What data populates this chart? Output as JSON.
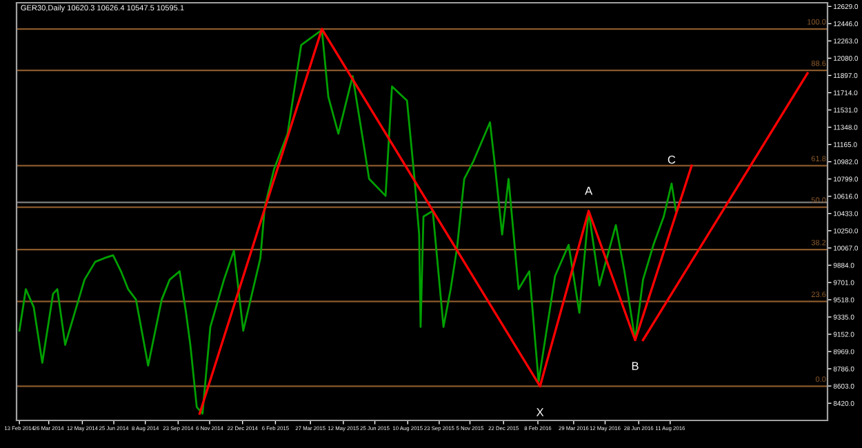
{
  "chart_data": {
    "type": "line",
    "title": "GER30,Daily 10620.3 10626.4 10547.5 10595.1",
    "xticks": [
      {
        "value": "2014-02-13",
        "label": "13 Feb 2014"
      },
      {
        "value": "2014-03-26",
        "label": "26 Mar 2014"
      },
      {
        "value": "2014-05-12",
        "label": "12 May 2014"
      },
      {
        "value": "2014-06-25",
        "label": "25 Jun 2014"
      },
      {
        "value": "2014-08-08",
        "label": "8 Aug 2014"
      },
      {
        "value": "2014-09-23",
        "label": "23 Sep 2014"
      },
      {
        "value": "2014-11-06",
        "label": "6 Nov 2014"
      },
      {
        "value": "2014-12-22",
        "label": "22 Dec 2014"
      },
      {
        "value": "2015-02-06",
        "label": "6 Feb 2015"
      },
      {
        "value": "2015-03-27",
        "label": "27 Mar 2015"
      },
      {
        "value": "2015-05-12",
        "label": "12 May 2015"
      },
      {
        "value": "2015-06-25",
        "label": "25 Jun 2015"
      },
      {
        "value": "2015-08-10",
        "label": "10 Aug 2015"
      },
      {
        "value": "2015-09-23",
        "label": "23 Sep 2015"
      },
      {
        "value": "2015-11-05",
        "label": "5 Nov 2015"
      },
      {
        "value": "2015-12-22",
        "label": "22 Dec 2015"
      },
      {
        "value": "2016-02-08",
        "label": "8 Feb 2016"
      },
      {
        "value": "2016-03-29",
        "label": "29 Mar 2016"
      },
      {
        "value": "2016-05-12",
        "label": "12 May 2016"
      },
      {
        "value": "2016-06-28",
        "label": "28 Jun 2016"
      },
      {
        "value": "2016-08-11",
        "label": "11 Aug 2016"
      }
    ],
    "xlim": [
      "2014-02-09",
      "2017-03-19"
    ],
    "ylim": [
      8238,
      12668
    ],
    "yticks": [
      {
        "value": 8420,
        "label": "8420.0"
      },
      {
        "value": 8603,
        "label": "8603.0"
      },
      {
        "value": 8786,
        "label": "8786.0"
      },
      {
        "value": 8969,
        "label": "8969.0"
      },
      {
        "value": 9152,
        "label": "9152.0"
      },
      {
        "value": 9335,
        "label": "9335.0"
      },
      {
        "value": 9518,
        "label": "9518.0"
      },
      {
        "value": 9701,
        "label": "9701.0"
      },
      {
        "value": 9884,
        "label": "9884.0"
      },
      {
        "value": 10067,
        "label": "10067.0"
      },
      {
        "value": 10250,
        "label": "10250.0"
      },
      {
        "value": 10433,
        "label": "10433.0"
      },
      {
        "value": 10616,
        "label": "10616.0"
      },
      {
        "value": 10799,
        "label": "10799.0"
      },
      {
        "value": 10982,
        "label": "10982.0"
      },
      {
        "value": 11165,
        "label": "11165.0"
      },
      {
        "value": 11348,
        "label": "11348.0"
      },
      {
        "value": 11531,
        "label": "11531.0"
      },
      {
        "value": 11714,
        "label": "11714.0"
      },
      {
        "value": 11897,
        "label": "11897.0"
      },
      {
        "value": 12080,
        "label": "12080.0"
      },
      {
        "value": 12263,
        "label": "12263.0"
      },
      {
        "value": 12446,
        "label": "12446.0"
      },
      {
        "value": 12629,
        "label": "12629.0"
      }
    ],
    "series": [
      {
        "color": "#00a000",
        "x": [
          "2014-02-13",
          "2014-02-22",
          "2014-03-05",
          "2014-03-17",
          "2014-04-01",
          "2014-04-07",
          "2014-04-18",
          "2014-05-15",
          "2014-05-30",
          "2014-06-12",
          "2014-06-24",
          "2014-07-05",
          "2014-07-15",
          "2014-07-26",
          "2014-08-12",
          "2014-08-31",
          "2014-09-11",
          "2014-09-25",
          "2014-10-04",
          "2014-10-10",
          "2014-10-19",
          "2014-10-27",
          "2014-11-07",
          "2014-11-26",
          "2014-12-10",
          "2014-12-23",
          "2015-01-16",
          "2015-01-22",
          "2015-02-04",
          "2015-02-23",
          "2015-03-14",
          "2015-04-12",
          "2015-04-21",
          "2015-05-05",
          "2015-05-25",
          "2015-06-11",
          "2015-06-17",
          "2015-07-10",
          "2015-07-19",
          "2015-08-09",
          "2015-08-19",
          "2015-08-26",
          "2015-08-28",
          "2015-09-01",
          "2015-09-14",
          "2015-09-29",
          "2015-10-09",
          "2015-10-18",
          "2015-10-28",
          "2015-11-10",
          "2015-12-03",
          "2015-12-10",
          "2015-12-20",
          "2015-12-29",
          "2016-01-12",
          "2016-01-27",
          "2016-02-09",
          "2016-03-03",
          "2016-03-22",
          "2016-04-06",
          "2016-04-19",
          "2016-05-04",
          "2016-05-27",
          "2016-06-08",
          "2016-06-23",
          "2016-07-04",
          "2016-07-19",
          "2016-08-02",
          "2016-08-13",
          "2016-08-19"
        ],
        "values": [
          9190,
          9630,
          9440,
          8850,
          9580,
          9630,
          9040,
          9730,
          9920,
          9960,
          9990,
          9820,
          9630,
          9520,
          8820,
          9520,
          9730,
          9820,
          9380,
          9040,
          8380,
          8310,
          9230,
          9730,
          10040,
          9190,
          9960,
          10500,
          10900,
          11280,
          12220,
          12380,
          11670,
          11280,
          11890,
          11090,
          10800,
          10620,
          11780,
          11630,
          10840,
          10210,
          9230,
          10400,
          10460,
          9230,
          9630,
          10070,
          10800,
          10990,
          11400,
          10940,
          10210,
          10800,
          9630,
          9820,
          8650,
          9770,
          10100,
          9380,
          10460,
          9670,
          10310,
          9820,
          9090,
          9730,
          10110,
          10400,
          10750,
          10460
        ]
      },
      {
        "color": "#ff0000",
        "x": [
          "2014-10-23",
          "2015-04-12",
          "2016-02-11",
          "2016-04-19",
          "2016-06-23",
          "2016-09-10"
        ],
        "values": [
          8310,
          12390,
          8600,
          10460,
          9090,
          10940
        ]
      },
      {
        "color": "#ff0000",
        "x": [
          "2016-07-04",
          "2017-02-19"
        ],
        "values": [
          9090,
          11920
        ]
      }
    ],
    "ref_lines": [
      {
        "axis": "y",
        "value": 12390,
        "color": "#8b5a2b"
      },
      {
        "axis": "y",
        "value": 11950,
        "color": "#8b5a2b"
      },
      {
        "axis": "y",
        "value": 10940,
        "color": "#8b5a2b"
      },
      {
        "axis": "y",
        "value": 10500,
        "color": "#8b5a2b"
      },
      {
        "axis": "y",
        "value": 10050,
        "color": "#8b5a2b"
      },
      {
        "axis": "y",
        "value": 9500,
        "color": "#8b5a2b"
      },
      {
        "axis": "y",
        "value": 8600,
        "color": "#8b5a2b"
      },
      {
        "axis": "y",
        "value": 10550,
        "color": "#808080"
      }
    ],
    "annotations": [
      {
        "text": "X",
        "x": "2016-02-11",
        "y": 8600
      },
      {
        "text": "A",
        "x": "2016-04-19",
        "y": 10460
      },
      {
        "text": "B",
        "x": "2016-06-23",
        "y": 9090
      },
      {
        "text": "C",
        "x": "2016-08-13",
        "y": 10750
      },
      {
        "text": "100.0",
        "x": "2017-03-17",
        "y": 12390
      },
      {
        "text": "88.6",
        "x": "2017-03-17",
        "y": 11950
      },
      {
        "text": "61.8",
        "x": "2017-03-17",
        "y": 10940
      },
      {
        "text": "50.0",
        "x": "2017-03-17",
        "y": 10500
      },
      {
        "text": "38.2",
        "x": "2017-03-17",
        "y": 10050
      },
      {
        "text": "23.6",
        "x": "2017-03-17",
        "y": 9500
      },
      {
        "text": "0.0",
        "x": "2017-03-17",
        "y": 8600
      }
    ],
    "grid": false,
    "legend": false,
    "marker": "none",
    "line_style": "solid"
  }
}
